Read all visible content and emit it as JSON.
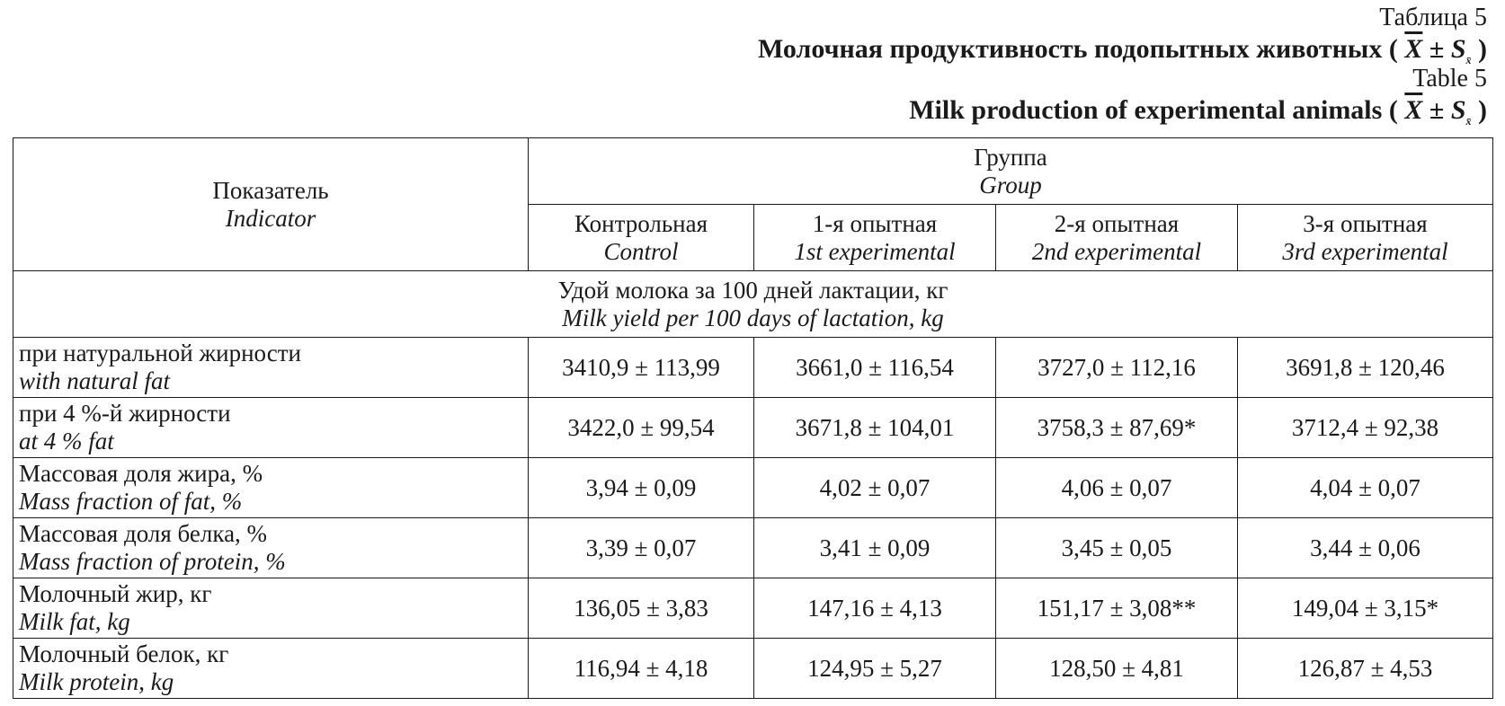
{
  "caption": {
    "label_ru": "Таблица 5",
    "title_ru": "Молочная продуктивность подопытных животных",
    "label_en": "Table 5",
    "title_en": "Milk production of experimental animals",
    "formula": {
      "open": "(",
      "mean": "X",
      "pm": "±",
      "s": "S",
      "s_sub": "x̄",
      "close": ")"
    }
  },
  "table": {
    "indicator_header": {
      "ru": "Показатель",
      "en": "Indicator"
    },
    "group_header": {
      "ru": "Группа",
      "en": "Group"
    },
    "groups": [
      {
        "ru": "Контрольная",
        "en": "Control"
      },
      {
        "ru": "1-я опытная",
        "en": "1st experimental"
      },
      {
        "ru": "2-я опытная",
        "en": "2nd experimental"
      },
      {
        "ru": "3-я опытная",
        "en": "3rd experimental"
      }
    ],
    "section": {
      "ru": "Удой молока за 100 дней лактации, кг",
      "en": "Milk yield per 100 days of lactation, kg"
    },
    "rows": [
      {
        "ru": "при натуральной жирности",
        "en": "with natural fat",
        "values": [
          "3410,9 ± 113,99",
          "3661,0 ± 116,54",
          "3727,0 ± 112,16",
          "3691,8 ± 120,46"
        ]
      },
      {
        "ru": "при 4 %-й жирности",
        "en": "at 4 % fat",
        "values": [
          "3422,0 ± 99,54",
          "3671,8 ± 104,01",
          "3758,3 ± 87,69*",
          "3712,4 ± 92,38"
        ]
      },
      {
        "ru": "Массовая доля жира, %",
        "en": "Mass fraction of fat, %",
        "values": [
          "3,94 ± 0,09",
          "4,02 ± 0,07",
          "4,06 ± 0,07",
          "4,04 ± 0,07"
        ]
      },
      {
        "ru": "Массовая доля белка, %",
        "en": "Mass fraction of protein, %",
        "values": [
          "3,39 ± 0,07",
          "3,41 ± 0,09",
          "3,45 ± 0,05",
          "3,44 ± 0,06"
        ]
      },
      {
        "ru": "Молочный жир, кг",
        "en": "Milk fat, kg",
        "values": [
          "136,05 ± 3,83",
          "147,16 ± 4,13",
          "151,17 ± 3,08**",
          "149,04 ± 3,15*"
        ]
      },
      {
        "ru": "Молочный белок, кг",
        "en": "Milk protein, kg",
        "values": [
          "116,94 ± 4,18",
          "124,95 ± 5,27",
          "128,50 ± 4,81",
          "126,87 ± 4,53"
        ]
      }
    ]
  }
}
